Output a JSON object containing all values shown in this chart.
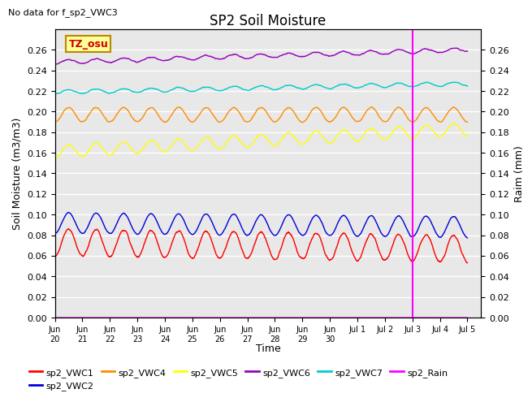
{
  "title": "SP2 Soil Moisture",
  "subtitle": "No data for f_sp2_VWC3",
  "ylabel_left": "Soil Moisture (m3/m3)",
  "ylabel_right": "Raim (mm)",
  "xlabel": "Time",
  "ylim": [
    0.0,
    0.28
  ],
  "yticks": [
    0.0,
    0.02,
    0.04,
    0.06,
    0.08,
    0.1,
    0.12,
    0.14,
    0.16,
    0.18,
    0.2,
    0.22,
    0.24,
    0.26
  ],
  "x_tick_labels": [
    "Jun\n20",
    "Jun\n21",
    "Jun\n22",
    "Jun\n23",
    "Jun\n24",
    "Jun\n25",
    "Jun\n26",
    "Jun\n27",
    "Jun\n28",
    "Jun\n29",
    "Jun\n30",
    "Jul 1",
    "Jul 2",
    "Jul 3",
    "Jul 4",
    "Jul 5"
  ],
  "vline_day": 13.0,
  "vline_color": "#FF00FF",
  "background_color": "#E8E8E8",
  "grid_color": "#FFFFFF",
  "tz_label": "TZ_osu",
  "tz_box_facecolor": "#FFFF99",
  "tz_box_edgecolor": "#BB8800",
  "tz_text_color": "#CC0000",
  "series": {
    "sp2_VWC1": {
      "color": "#FF0000",
      "base": 0.073,
      "amplitude": 0.013,
      "trend": -0.006,
      "period": 1.0,
      "noise": 0.002
    },
    "sp2_VWC2": {
      "color": "#0000DD",
      "base": 0.092,
      "amplitude": 0.01,
      "trend": -0.004,
      "period": 1.0,
      "noise": 0.001
    },
    "sp2_VWC4": {
      "color": "#FF8C00",
      "base": 0.197,
      "amplitude": 0.007,
      "trend": 0.0,
      "period": 1.0,
      "noise": 0.001
    },
    "sp2_VWC5": {
      "color": "#FFFF00",
      "base": 0.161,
      "amplitude": 0.006,
      "trend": 0.022,
      "period": 1.0,
      "noise": 0.001
    },
    "sp2_VWC6": {
      "color": "#9900BB",
      "base": 0.248,
      "amplitude": 0.002,
      "trend": 0.012,
      "period": 1.0,
      "noise": 0.001
    },
    "sp2_VWC7": {
      "color": "#00CCCC",
      "base": 0.219,
      "amplitude": 0.002,
      "trend": 0.008,
      "period": 1.0,
      "noise": 0.001
    },
    "sp2_Rain": {
      "color": "#FF00FF"
    }
  },
  "legend_entries": [
    {
      "label": "sp2_VWC1",
      "color": "#FF0000"
    },
    {
      "label": "sp2_VWC2",
      "color": "#0000DD"
    },
    {
      "label": "sp2_VWC4",
      "color": "#FF8C00"
    },
    {
      "label": "sp2_VWC5",
      "color": "#FFFF00"
    },
    {
      "label": "sp2_VWC6",
      "color": "#9900BB"
    },
    {
      "label": "sp2_VWC7",
      "color": "#00CCCC"
    },
    {
      "label": "sp2_Rain",
      "color": "#FF00FF"
    }
  ]
}
